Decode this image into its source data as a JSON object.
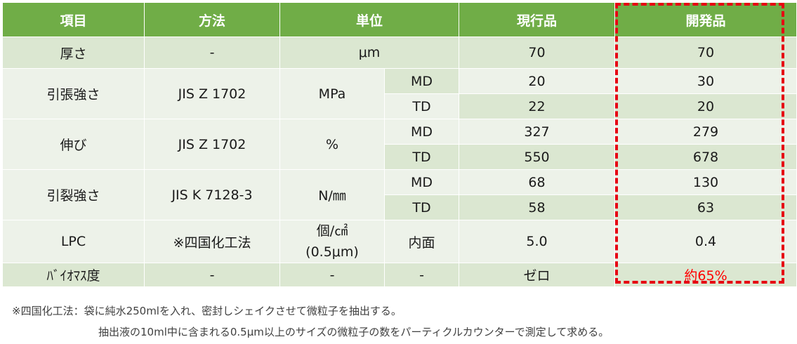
{
  "headers": [
    "項目",
    "方法",
    "単位",
    "現行品",
    "開発品"
  ],
  "rows": {
    "thickness": {
      "item": "厚さ",
      "method": "-",
      "unit": "μm",
      "current": "70",
      "developed": "70"
    },
    "tensile": {
      "item": "引張強さ",
      "method": "JIS Z 1702",
      "unit": "MPa",
      "md": {
        "dir": "MD",
        "current": "20",
        "developed": "30"
      },
      "td": {
        "dir": "TD",
        "current": "22",
        "developed": "20"
      }
    },
    "elongation": {
      "item": "伸び",
      "method": "JIS Z 1702",
      "unit": "%",
      "md": {
        "dir": "MD",
        "current": "327",
        "developed": "279"
      },
      "td": {
        "dir": "TD",
        "current": "550",
        "developed": "678"
      }
    },
    "tear": {
      "item": "引裂強さ",
      "method": "JIS K 7128-3",
      "unit": "N/㎜",
      "md": {
        "dir": "MD",
        "current": "68",
        "developed": "130"
      },
      "td": {
        "dir": "TD",
        "current": "58",
        "developed": "63"
      }
    },
    "lpc": {
      "item": "LPC",
      "method": "※四国化工法",
      "unit_line1": "個/㎠",
      "unit_line2": "(0.5μm)",
      "sub": "内面",
      "current": "5.0",
      "developed": "0.4"
    },
    "biomass": {
      "item": "ﾊﾞｲｵﾏｽ度",
      "method": "-",
      "unit": "-",
      "sub": "-",
      "current": "ゼロ",
      "developed": "約65%"
    }
  },
  "notes": {
    "line1": "※四国化工法：袋に純水250mlを入れ、密封しシェイクさせて微粒子を抽出する。",
    "line2": "抽出液の10ml中に含まれる0.5μm以上のサイズの微粒子の数をパーティクルカウンターで測定して求める。"
  },
  "colors": {
    "header_bg": "#70ad47",
    "row_dark": "#dbe7d1",
    "row_light": "#edf2e9",
    "highlight": "#e60012"
  }
}
